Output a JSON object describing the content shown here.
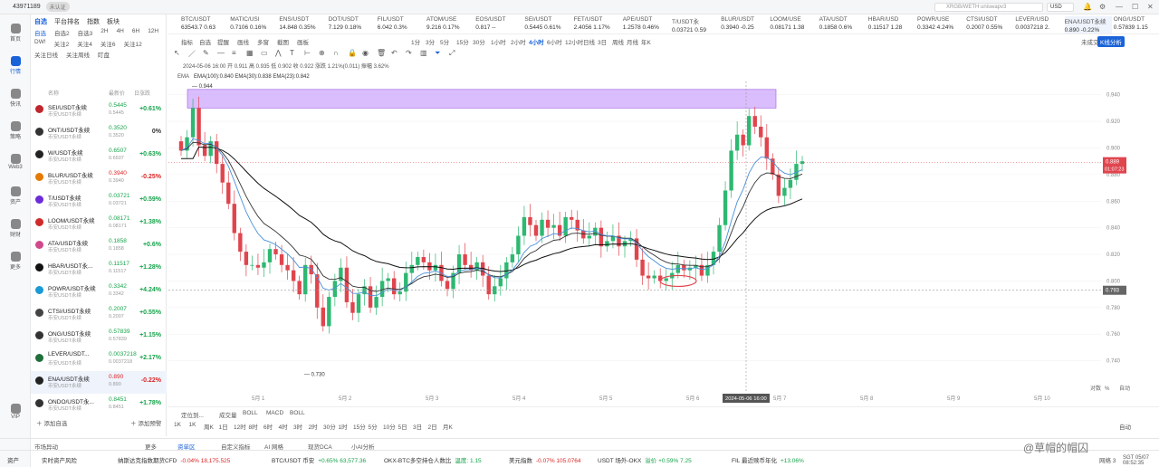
{
  "titlebar": {
    "uid": "43971189",
    "badge": "未认证",
    "search": "XRGB/WETH uniswapv3",
    "currency": "USD"
  },
  "nav": [
    {
      "label": "首页",
      "icon": "home-icon"
    },
    {
      "label": "行情",
      "icon": "chart-icon",
      "active": true
    },
    {
      "label": "快讯",
      "icon": "news-icon"
    },
    {
      "label": "策略",
      "icon": "strategy-icon"
    },
    {
      "label": "Web3",
      "icon": "web3-icon"
    },
    {
      "label": "资产",
      "icon": "wallet-icon"
    },
    {
      "label": "财财",
      "icon": "finance-icon"
    },
    {
      "label": "更多",
      "icon": "more-icon"
    },
    {
      "label": "VIP",
      "icon": "vip-icon"
    }
  ],
  "watchlist": {
    "tabs": [
      "自选",
      "平台排名",
      "指数",
      "板块"
    ],
    "chips": [
      "自选",
      "自选2",
      "自选3",
      "2H",
      "4H",
      "6H",
      "12H",
      "DW!",
      "关注2",
      "关注4",
      "关注6",
      "关注12",
      "关注日线",
      "关注周线",
      "盯盘"
    ],
    "header": {
      "name": "名称",
      "price": "最新价",
      "change": "日涨跌"
    },
    "rows": [
      {
        "name": "SEI/USDT永续",
        "sub": "币安USDT永续",
        "price": "0.5445",
        "price2": "0.5445",
        "change": "+0.61%",
        "dir": "pos"
      },
      {
        "name": "ONT/USDT永续",
        "sub": "币安USDT永续",
        "price": "0.3520",
        "price2": "0.3520",
        "change": "0%",
        "dir": "flat"
      },
      {
        "name": "W/USDT永续",
        "sub": "币安USDT永续",
        "price": "0.6507",
        "price2": "0.6507",
        "change": "+0.63%",
        "dir": "pos"
      },
      {
        "name": "BLUR/USDT永续",
        "sub": "币安USDT永续",
        "price": "0.3940",
        "price2": "0.3940",
        "change": "-0.25%",
        "dir": "neg"
      },
      {
        "name": "T/USDT永续",
        "sub": "币安USDT永续",
        "price": "0.03721",
        "price2": "0.03721",
        "change": "+0.59%",
        "dir": "pos"
      },
      {
        "name": "LOOM/USDT永续",
        "sub": "币安USDT永续",
        "price": "0.08171",
        "price2": "0.08171",
        "change": "+1.38%",
        "dir": "pos"
      },
      {
        "name": "ATA/USDT永续",
        "sub": "币安USDT永续",
        "price": "0.1858",
        "price2": "0.1858",
        "change": "+0.6%",
        "dir": "pos"
      },
      {
        "name": "HBAR/USDT永...",
        "sub": "币安USDT永续",
        "price": "0.11517",
        "price2": "0.11517",
        "change": "+1.28%",
        "dir": "pos"
      },
      {
        "name": "POWR/USDT永续",
        "sub": "币安USDT永续",
        "price": "0.3342",
        "price2": "0.3342",
        "change": "+4.24%",
        "dir": "pos"
      },
      {
        "name": "CTSI/USDT永续",
        "sub": "币安USDT永续",
        "price": "0.2007",
        "price2": "0.2007",
        "change": "+0.55%",
        "dir": "pos"
      },
      {
        "name": "ONG/USDT永续",
        "sub": "币安USDT永续",
        "price": "0.57839",
        "price2": "0.57839",
        "change": "+1.15%",
        "dir": "pos"
      },
      {
        "name": "LEVER/USDT...",
        "sub": "币安USDT永续",
        "price": "0.0037218",
        "price2": "0.0037218",
        "change": "+2.17%",
        "dir": "pos"
      },
      {
        "name": "ENA/USDT永续",
        "sub": "币安USDT永续",
        "price": "0.890",
        "price2": "0.890",
        "change": "-0.22%",
        "dir": "neg",
        "selected": true
      },
      {
        "name": "ONDO/USDT永...",
        "sub": "币安USDT永续",
        "price": "0.8451",
        "price2": "0.8451",
        "change": "+1.78%",
        "dir": "pos"
      }
    ],
    "add_label": "添加自选",
    "alert_label": "添加预警"
  },
  "ticker": [
    {
      "name": "BTC/USDT",
      "price": "63543.7  0.63"
    },
    {
      "name": "MATIC/USI",
      "price": "0.7106  0.16%"
    },
    {
      "name": "ENS/USDT",
      "price": "14.848  0.35%"
    },
    {
      "name": "DOT/USDT",
      "price": "7.129  0.18%"
    },
    {
      "name": "FIL/USDT",
      "price": "6.042  0.3%"
    },
    {
      "name": "ATOM/USE",
      "price": "9.216  0.17%"
    },
    {
      "name": "EOS/USDT",
      "price": "0.817  --"
    },
    {
      "name": "SEI/USDT",
      "price": "0.5445  0.61%"
    },
    {
      "name": "FET/USDT",
      "price": "2.4056  1.17%"
    },
    {
      "name": "APE/USDT",
      "price": "1.2578  0.46%"
    },
    {
      "name": "T/USDT永",
      "price": "0.03721  0.59"
    },
    {
      "name": "BLUR/USDT",
      "price": "0.3940  -0.25"
    },
    {
      "name": "LOOM/USE",
      "price": "0.08171  1.38"
    },
    {
      "name": "ATA/USDT",
      "price": "0.1858  0.6%"
    },
    {
      "name": "HBAR/USD",
      "price": "0.11517  1.28"
    },
    {
      "name": "POWR/USE",
      "price": "0.3342  4.24%"
    },
    {
      "name": "CTSI/USDT",
      "price": "0.2007  0.55%"
    },
    {
      "name": "LEVER/USD",
      "price": "0.0037218  2."
    },
    {
      "name": "ENA/USDT永续",
      "price": "0.890  -0.22%",
      "selected": true
    },
    {
      "name": "ONG/USDT",
      "price": "0.57839  1.15"
    }
  ],
  "toolbar": {
    "items": [
      "指标",
      "自选",
      "提醒",
      "画线",
      "多窗",
      "截图",
      "画板",
      "1分",
      "3分",
      "5分",
      "15分",
      "30分",
      "1小时",
      "2小时",
      "4小时",
      "6小时",
      "12小时",
      "日线",
      "3日",
      "周线",
      "月线",
      "年K"
    ],
    "mode": "未成交",
    "kline_btn": "K线分析"
  },
  "chart_data": {
    "type": "candlestick",
    "symbol": "ENA/USDT永续 2小时",
    "ohlc_info": "2024-05-06 16:00  开 0.911  高 0.935  低 0.902  收 0.922  涨跌 1.21%(0.011)  振幅 3.62%",
    "ema_label": "EMA",
    "ema_text": "EMA(100):0.840  EMA(30):0.838  EMA(23):0.842",
    "ylim": [
      0.72,
      0.95
    ],
    "yticks": [
      "0.940",
      "0.920",
      "0.900",
      "0.880",
      "0.860",
      "0.840",
      "0.820",
      "0.800",
      "0.780",
      "0.760",
      "0.740"
    ],
    "xticks": [
      "5月 1",
      "5月 2",
      "5月 3",
      "5月 4",
      "5月 5",
      "5月 6",
      "5月 7",
      "5月 8",
      "5月 9",
      "5月 10"
    ],
    "crosshair_time": "2024-05-06 16:00",
    "last_price": "0.889",
    "countdown": "01:07:23",
    "crosshair_price": "0.793",
    "high_label": "0.944",
    "low_label": "0.730",
    "axis_mode": [
      "对数",
      "%",
      "自动"
    ]
  },
  "subchart": {
    "tabs": [
      "成交量",
      "BOLL",
      "MACD",
      "BOLL"
    ],
    "label": "定位到..."
  },
  "bottom_tf": [
    "1K",
    "1K",
    "周K",
    "1日",
    "12时",
    "8时",
    "6时",
    "4时",
    "3时",
    "2时",
    "30分",
    "1时",
    "15分",
    "5分",
    "10分",
    "5日",
    "3日",
    "2日",
    "月K",
    "自动"
  ],
  "bottom_tabs": {
    "left": "市场异动",
    "more": "更多",
    "items": [
      "资单区",
      "自定义指标",
      "AI 网格",
      "现货DCA",
      "小AI分析"
    ]
  },
  "status": [
    {
      "label": "资产",
      "value": ""
    },
    {
      "label": "实时资产风险",
      "value": ""
    },
    {
      "label": "纳斯达克指数期货CFD",
      "value": "-0.04%  18,175.525"
    },
    {
      "label": "BTC/USDT 币安",
      "value": "+0.65%  63,577.36"
    },
    {
      "label": "OKX-BTC多空持仓人数比",
      "value": "温度: 1.15"
    },
    {
      "label": "美元指数",
      "value": "-0.07%  105.0764"
    },
    {
      "label": "USDT 场外-OKX",
      "value": "溢价 +0.59%  7.25"
    },
    {
      "label": "FIL 最近赎币年化",
      "value": "+13.06%"
    }
  ],
  "status_right": {
    "net": "网络 3",
    "time": "SGT 05/07 08:52:35"
  },
  "watermark": "@草帽的帽囚"
}
